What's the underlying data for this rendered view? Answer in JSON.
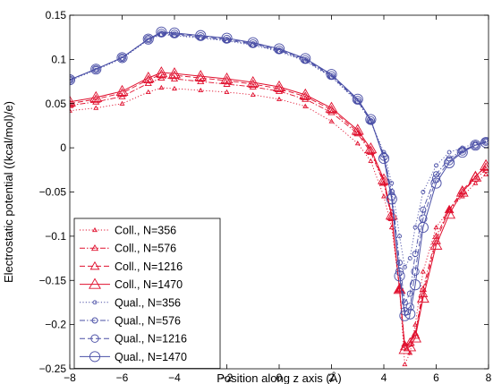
{
  "chart_data": {
    "type": "line",
    "title": "",
    "xlabel": "Position along z axis (Å)",
    "ylabel": "Electrostatic potential ((kcal/mol)/e)",
    "xlim": [
      -8,
      8
    ],
    "ylim": [
      -0.25,
      0.15
    ],
    "x_ticks": [
      -8,
      -6,
      -4,
      -2,
      0,
      2,
      4,
      6,
      8
    ],
    "x_tick_labels": [
      "−8",
      "−6",
      "−4",
      "−2",
      "0",
      "2",
      "4",
      "6",
      "8"
    ],
    "y_ticks": [
      -0.25,
      -0.2,
      -0.15,
      -0.1,
      -0.05,
      0,
      0.05,
      0.1,
      0.15
    ],
    "y_tick_labels": [
      "−0.25",
      "−0.2",
      "−0.15",
      "−0.1",
      "−0.05",
      "0",
      "0.05",
      "0.1",
      "0.15"
    ],
    "grid": false,
    "legend_position": "bottom-left",
    "colors": {
      "coll": "#e0102e",
      "qual": "#4a4fa6"
    },
    "series": [
      {
        "name": "Coll., N=356",
        "group": "coll",
        "line": "dotted",
        "marker": "triangle",
        "marker_size": "small",
        "x": [
          -8,
          -7,
          -6,
          -5,
          -4.5,
          -4,
          -3,
          -2,
          -1,
          0,
          1,
          2,
          3,
          3.5,
          4,
          4.3,
          4.6,
          4.8,
          5.0,
          5.2,
          5.5,
          6,
          6.5,
          7,
          7.5,
          7.9
        ],
        "y": [
          0.042,
          0.045,
          0.05,
          0.063,
          0.068,
          0.067,
          0.065,
          0.063,
          0.06,
          0.055,
          0.047,
          0.03,
          0.005,
          -0.015,
          -0.055,
          -0.09,
          -0.16,
          -0.245,
          -0.232,
          -0.2,
          -0.14,
          -0.09,
          -0.07,
          -0.055,
          -0.04,
          -0.03
        ]
      },
      {
        "name": "Coll., N=576",
        "group": "coll",
        "line": "dashdot",
        "marker": "triangle",
        "marker_size": "medium",
        "x": [
          -8,
          -7,
          -6,
          -5,
          -4.5,
          -4,
          -3,
          -2,
          -1,
          0,
          1,
          2,
          3,
          3.5,
          4,
          4.3,
          4.6,
          4.8,
          5.0,
          5.2,
          5.5,
          6,
          6.5,
          7,
          7.5,
          7.9
        ],
        "y": [
          0.048,
          0.052,
          0.058,
          0.073,
          0.079,
          0.078,
          0.075,
          0.072,
          0.069,
          0.064,
          0.055,
          0.04,
          0.016,
          -0.005,
          -0.04,
          -0.08,
          -0.16,
          -0.222,
          -0.222,
          -0.21,
          -0.16,
          -0.1,
          -0.07,
          -0.05,
          -0.035,
          -0.025
        ]
      },
      {
        "name": "Coll., N=1216",
        "group": "coll",
        "line": "dashed",
        "marker": "triangle",
        "marker_size": "large",
        "x": [
          -8,
          -7,
          -6,
          -5,
          -4.5,
          -4,
          -3,
          -2,
          -1,
          0,
          1,
          2,
          3,
          3.5,
          4,
          4.3,
          4.6,
          4.8,
          5.0,
          5.2,
          5.5,
          6,
          6.5,
          7,
          7.5,
          7.9
        ],
        "y": [
          0.05,
          0.055,
          0.062,
          0.077,
          0.083,
          0.082,
          0.079,
          0.076,
          0.072,
          0.067,
          0.058,
          0.043,
          0.018,
          -0.003,
          -0.038,
          -0.078,
          -0.16,
          -0.225,
          -0.22,
          -0.212,
          -0.165,
          -0.105,
          -0.07,
          -0.048,
          -0.032,
          -0.022
        ]
      },
      {
        "name": "Coll., N=1470",
        "group": "coll",
        "line": "solid",
        "marker": "triangle",
        "marker_size": "xlarge",
        "x": [
          -8,
          -7,
          -6,
          -5,
          -4.5,
          -4,
          -3,
          -2,
          -1,
          0,
          1,
          2,
          3,
          3.5,
          4,
          4.3,
          4.6,
          4.8,
          5.0,
          5.2,
          5.5,
          6,
          6.5,
          7,
          7.5,
          7.9
        ],
        "y": [
          0.052,
          0.057,
          0.064,
          0.079,
          0.085,
          0.084,
          0.081,
          0.078,
          0.074,
          0.069,
          0.06,
          0.045,
          0.02,
          -0.001,
          -0.036,
          -0.076,
          -0.16,
          -0.228,
          -0.225,
          -0.215,
          -0.17,
          -0.11,
          -0.075,
          -0.05,
          -0.033,
          -0.02
        ]
      },
      {
        "name": "Qual., N=356",
        "group": "qual",
        "line": "dotted",
        "marker": "circle",
        "marker_size": "small",
        "x": [
          -8,
          -7,
          -6,
          -5,
          -4.5,
          -4,
          -3,
          -2,
          -1,
          0,
          1,
          2,
          3,
          3.5,
          4,
          4.3,
          4.6,
          4.8,
          5.0,
          5.2,
          5.5,
          6,
          6.5,
          7,
          7.5,
          7.9
        ],
        "y": [
          0.076,
          0.088,
          0.101,
          0.122,
          0.128,
          0.127,
          0.124,
          0.121,
          0.116,
          0.109,
          0.098,
          0.08,
          0.052,
          0.03,
          -0.005,
          -0.04,
          -0.1,
          -0.135,
          -0.125,
          -0.09,
          -0.05,
          -0.02,
          -0.005,
          0.0,
          0.005,
          0.008
        ]
      },
      {
        "name": "Qual., N=576",
        "group": "qual",
        "line": "dashdot",
        "marker": "circle",
        "marker_size": "medium",
        "x": [
          -8,
          -7,
          -6,
          -5,
          -4.5,
          -4,
          -3,
          -2,
          -1,
          0,
          1,
          2,
          3,
          3.5,
          4,
          4.3,
          4.6,
          4.8,
          5.0,
          5.2,
          5.5,
          6,
          6.5,
          7,
          7.5,
          7.9
        ],
        "y": [
          0.077,
          0.089,
          0.102,
          0.123,
          0.129,
          0.128,
          0.125,
          0.122,
          0.117,
          0.11,
          0.099,
          0.081,
          0.053,
          0.03,
          -0.008,
          -0.05,
          -0.13,
          -0.175,
          -0.165,
          -0.12,
          -0.07,
          -0.03,
          -0.012,
          -0.003,
          0.003,
          0.007
        ]
      },
      {
        "name": "Qual., N=1216",
        "group": "qual",
        "line": "dashed",
        "marker": "circle",
        "marker_size": "large",
        "x": [
          -8,
          -7,
          -6,
          -5,
          -4.5,
          -4,
          -3,
          -2,
          -1,
          0,
          1,
          2,
          3,
          3.5,
          4,
          4.3,
          4.6,
          4.8,
          5.0,
          5.2,
          5.5,
          6,
          6.5,
          7,
          7.5,
          7.9
        ],
        "y": [
          0.077,
          0.089,
          0.102,
          0.123,
          0.13,
          0.129,
          0.126,
          0.123,
          0.118,
          0.111,
          0.1,
          0.082,
          0.054,
          0.031,
          -0.01,
          -0.055,
          -0.14,
          -0.185,
          -0.18,
          -0.14,
          -0.08,
          -0.035,
          -0.015,
          -0.004,
          0.003,
          0.007
        ]
      },
      {
        "name": "Qual., N=1470",
        "group": "qual",
        "line": "solid",
        "marker": "circle",
        "marker_size": "xlarge",
        "x": [
          -8,
          -7,
          -6,
          -5,
          -4.5,
          -4,
          -3,
          -2,
          -1,
          0,
          1,
          2,
          3,
          3.5,
          4,
          4.3,
          4.6,
          4.8,
          5.0,
          5.2,
          5.5,
          6,
          6.5,
          7,
          7.5,
          7.9
        ],
        "y": [
          0.077,
          0.089,
          0.102,
          0.123,
          0.131,
          0.13,
          0.127,
          0.124,
          0.119,
          0.112,
          0.101,
          0.083,
          0.055,
          0.032,
          -0.012,
          -0.058,
          -0.145,
          -0.19,
          -0.188,
          -0.155,
          -0.09,
          -0.04,
          -0.017,
          -0.005,
          0.003,
          0.006
        ]
      }
    ]
  }
}
